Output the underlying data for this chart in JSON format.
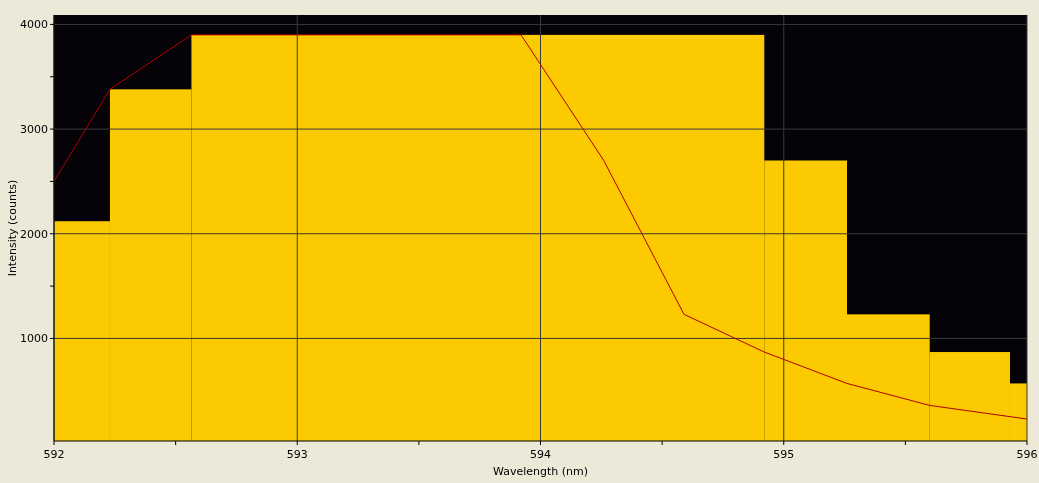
{
  "chart_data": {
    "type": "histogram",
    "xlabel": "Wavelength (nm)",
    "ylabel": "Intensity (counts)",
    "bins": [
      592,
      592.23,
      592.565,
      594.92,
      595.26,
      595.6,
      595.93,
      596
    ],
    "values": [
      2120,
      3380,
      3900,
      2700,
      1230,
      870,
      570
    ],
    "color": "#fcca00",
    "series": [
      {
        "type": "line",
        "color": "#b00000",
        "x": [
          592,
          592.23,
          592.565,
          593.92,
          594.26,
          594.59,
          594.92,
          595.26,
          595.6,
          596
        ],
        "values": [
          2500,
          3380,
          3900,
          3900,
          2700,
          1230,
          870,
          570,
          360,
          230
        ]
      }
    ],
    "xlim": [
      592,
      596
    ],
    "ylim": [
      20,
      4090
    ],
    "xticks": [
      592,
      {
        "value": 592.5,
        "label": null
      },
      593,
      {
        "value": 593.5,
        "label": null
      },
      594,
      {
        "value": 594.5,
        "label": null
      },
      595,
      {
        "value": 595.5,
        "label": null
      },
      596
    ],
    "yticks": [
      1000,
      {
        "value": 1500,
        "label": null
      },
      2000,
      {
        "value": 2500,
        "label": null
      },
      3000,
      {
        "value": 3500,
        "label": null
      },
      4000
    ],
    "grid": true,
    "marker": "none"
  }
}
